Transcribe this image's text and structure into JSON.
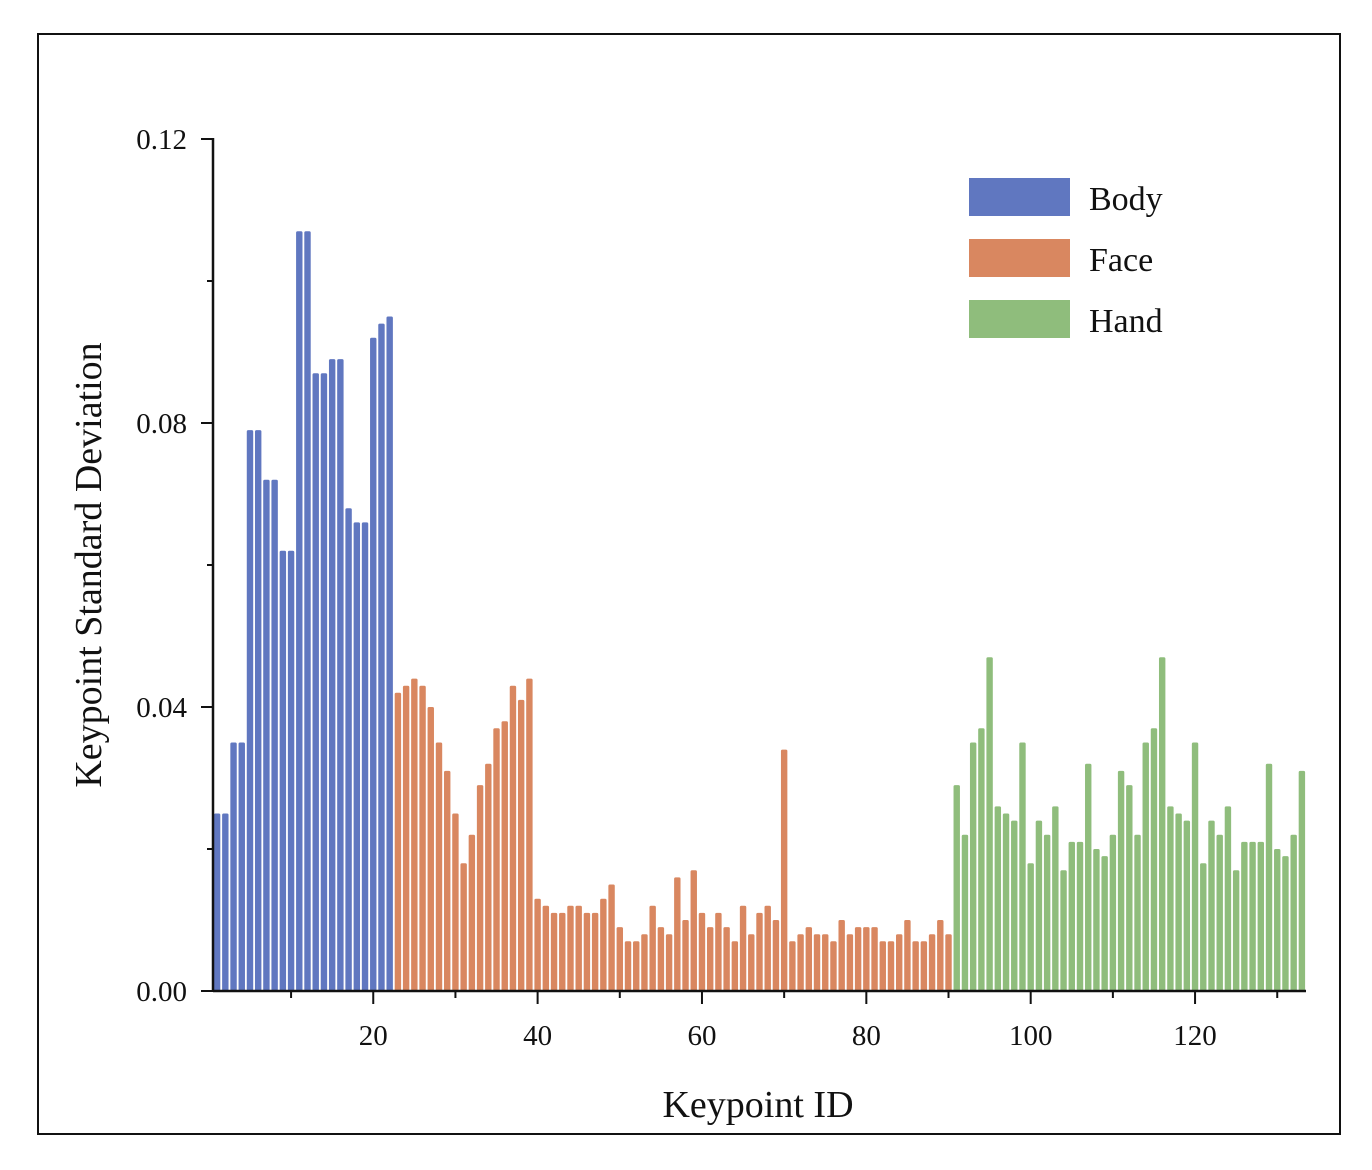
{
  "chart_data": {
    "type": "bar",
    "title": "",
    "xlabel": "Keypoint ID",
    "ylabel": "Keypoint Standard Deviation",
    "xlim": [
      0.5,
      133.5
    ],
    "ylim": [
      0,
      0.12
    ],
    "x_ticks": [
      20,
      40,
      60,
      80,
      100,
      120
    ],
    "x_tick_labels": [
      "20",
      "40",
      "60",
      "80",
      "100",
      "120"
    ],
    "y_ticks": [
      0,
      0.04,
      0.08,
      0.12
    ],
    "y_tick_labels": [
      "0.00",
      "0.04",
      "0.08",
      "0.12"
    ],
    "legend_position": "top-right",
    "colors": {
      "Body": "#6077c0",
      "Face": "#d98760",
      "Hand": "#8fbd7c"
    },
    "series": [
      {
        "name": "Body",
        "x_start": 1,
        "values": [
          0.025,
          0.025,
          0.035,
          0.035,
          0.079,
          0.079,
          0.072,
          0.072,
          0.062,
          0.062,
          0.107,
          0.107,
          0.087,
          0.087,
          0.089,
          0.089,
          0.068,
          0.066,
          0.066,
          0.092,
          0.094,
          0.095
        ]
      },
      {
        "name": "Face",
        "x_start": 23,
        "values": [
          0.042,
          0.043,
          0.044,
          0.043,
          0.04,
          0.035,
          0.031,
          0.025,
          0.018,
          0.022,
          0.029,
          0.032,
          0.037,
          0.038,
          0.043,
          0.041,
          0.044,
          0.013,
          0.012,
          0.011,
          0.011,
          0.012,
          0.012,
          0.011,
          0.011,
          0.013,
          0.015,
          0.009,
          0.007,
          0.007,
          0.008,
          0.012,
          0.009,
          0.008,
          0.016,
          0.01,
          0.017,
          0.011,
          0.009,
          0.011,
          0.009,
          0.007,
          0.012,
          0.008,
          0.011,
          0.012,
          0.01,
          0.034,
          0.007,
          0.008,
          0.009,
          0.008,
          0.008,
          0.007,
          0.01,
          0.008,
          0.009,
          0.009,
          0.009,
          0.007,
          0.007,
          0.008,
          0.01,
          0.007,
          0.007,
          0.008,
          0.01,
          0.008
        ]
      },
      {
        "name": "Hand",
        "x_start": 91,
        "values": [
          0.029,
          0.022,
          0.035,
          0.037,
          0.047,
          0.026,
          0.025,
          0.024,
          0.035,
          0.018,
          0.024,
          0.022,
          0.026,
          0.017,
          0.021,
          0.021,
          0.032,
          0.02,
          0.019,
          0.022,
          0.031,
          0.029,
          0.022,
          0.035,
          0.037,
          0.047,
          0.026,
          0.025,
          0.024,
          0.035,
          0.018,
          0.024,
          0.022,
          0.026,
          0.017,
          0.021,
          0.021,
          0.021,
          0.032,
          0.02,
          0.019,
          0.022,
          0.031
        ]
      }
    ]
  }
}
